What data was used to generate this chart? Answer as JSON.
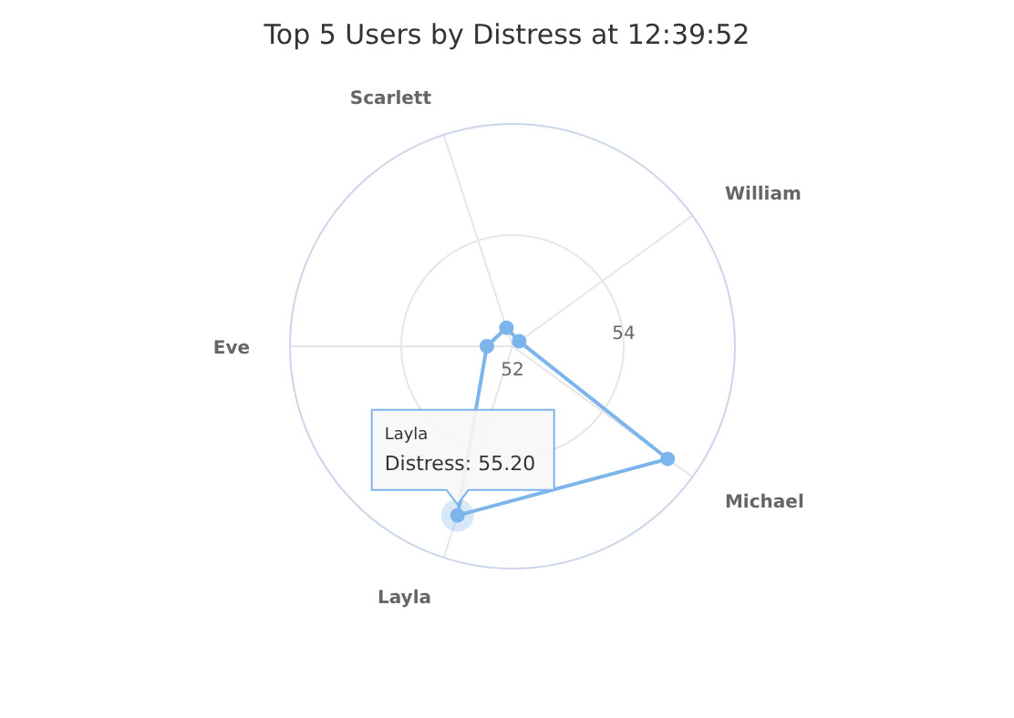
{
  "chart_data": {
    "type": "radar",
    "title": "Top 5 Users by Distress at 12:39:52",
    "categories": [
      "Scarlett",
      "William",
      "Michael",
      "Layla",
      "Eve"
    ],
    "series": [
      {
        "color": "#7cb5ec",
        "values": [
          52.35,
          52.15,
          55.45,
          55.2,
          52.46
        ]
      }
    ],
    "ylim": [
      52,
      56
    ],
    "yticks": [
      52,
      54
    ],
    "marker": "circle",
    "grid": true,
    "annotations": [
      {
        "text": "Layla\nDistress: 55.20",
        "x": "Layla"
      }
    ]
  }
}
